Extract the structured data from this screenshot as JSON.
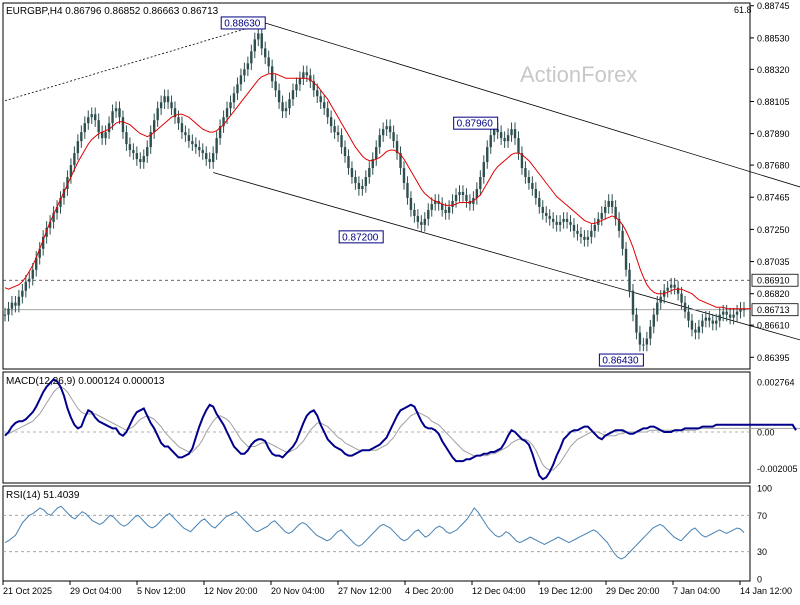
{
  "header": {
    "symbol_line": "EURGBP,H4  0.86796 0.86852 0.86663 0.86713",
    "corner_value": "61.8"
  },
  "watermark": "ActionForex",
  "colors": {
    "candle": "#2f4f4f",
    "ma": "#e00000",
    "channel": "#000000",
    "macd_line": "#00008b",
    "signal_line": "#a0a0a0",
    "rsi_line": "#4682b4",
    "price_box_bg": "#ffffff",
    "last_box_bg": "#ffffff"
  },
  "chart_data": [
    {
      "type": "candlestick",
      "title": "EURGBP,H4  0.86796 0.86852 0.86663 0.86713",
      "y_ticks": [
        "0.88745",
        "0.88530",
        "0.88320",
        "0.88105",
        "0.87890",
        "0.87680",
        "0.87465",
        "0.87250",
        "0.87035",
        "0.86820",
        "0.86610",
        "0.86395"
      ],
      "ylim": [
        0.8633,
        0.8875
      ],
      "x_ticks": [
        "21 Oct 2025",
        "29 Oct 04:00",
        "5 Nov 12:00",
        "12 Nov 20:00",
        "20 Nov 04:00",
        "27 Nov 12:00",
        "4 Dec 20:00",
        "12 Dec 04:00",
        "19 Dec 12:00",
        "29 Dec 20:00",
        "7 Jan 04:00",
        "14 Jan 12:00"
      ],
      "close_series": [
        0.8668,
        0.8672,
        0.8676,
        0.8674,
        0.868,
        0.8684,
        0.869,
        0.8692,
        0.8698,
        0.8706,
        0.8712,
        0.872,
        0.8726,
        0.873,
        0.8736,
        0.874,
        0.8746,
        0.8752,
        0.876,
        0.8768,
        0.8776,
        0.8784,
        0.879,
        0.8796,
        0.88,
        0.8802,
        0.8798,
        0.879,
        0.8786,
        0.879,
        0.8796,
        0.8804,
        0.8806,
        0.88,
        0.879,
        0.8782,
        0.8778,
        0.8776,
        0.8772,
        0.877,
        0.8774,
        0.878,
        0.879,
        0.8798,
        0.8806,
        0.881,
        0.8814,
        0.881,
        0.8806,
        0.88,
        0.8796,
        0.879,
        0.8788,
        0.8784,
        0.8782,
        0.878,
        0.8778,
        0.8776,
        0.8772,
        0.877,
        0.8776,
        0.8786,
        0.8794,
        0.88,
        0.8806,
        0.881,
        0.8816,
        0.8822,
        0.8828,
        0.8832,
        0.8836,
        0.8844,
        0.8852,
        0.8856,
        0.8846,
        0.884,
        0.8834,
        0.8824,
        0.8818,
        0.881,
        0.8804,
        0.8806,
        0.8812,
        0.8818,
        0.8822,
        0.8826,
        0.883,
        0.8828,
        0.8824,
        0.8818,
        0.8814,
        0.881,
        0.8806,
        0.88,
        0.8794,
        0.879,
        0.8788,
        0.878,
        0.8774,
        0.8766,
        0.876,
        0.8756,
        0.8752,
        0.8754,
        0.876,
        0.8766,
        0.8772,
        0.878,
        0.8788,
        0.8792,
        0.8794,
        0.879,
        0.8784,
        0.8776,
        0.8766,
        0.8756,
        0.8746,
        0.8738,
        0.8734,
        0.873,
        0.8728,
        0.8732,
        0.8738,
        0.8742,
        0.8744,
        0.8742,
        0.8738,
        0.8736,
        0.874,
        0.8744,
        0.8748,
        0.875,
        0.8748,
        0.8744,
        0.8742,
        0.8746,
        0.8752,
        0.876,
        0.877,
        0.878,
        0.8788,
        0.8792,
        0.879,
        0.8786,
        0.8784,
        0.8788,
        0.8792,
        0.8786,
        0.8776,
        0.8766,
        0.876,
        0.8756,
        0.8752,
        0.8746,
        0.874,
        0.8736,
        0.8734,
        0.8732,
        0.873,
        0.8728,
        0.873,
        0.8732,
        0.873,
        0.8728,
        0.8724,
        0.8722,
        0.872,
        0.8718,
        0.872,
        0.8724,
        0.8728,
        0.8732,
        0.8736,
        0.874,
        0.8744,
        0.874,
        0.8732,
        0.8724,
        0.8712,
        0.8698,
        0.8684,
        0.8668,
        0.8656,
        0.8648,
        0.8648,
        0.8652,
        0.866,
        0.8668,
        0.8676,
        0.868,
        0.8684,
        0.8686,
        0.8688,
        0.8686,
        0.8682,
        0.8676,
        0.867,
        0.8664,
        0.8658,
        0.8656,
        0.866,
        0.8664,
        0.8666,
        0.8664,
        0.8662,
        0.8664,
        0.8668,
        0.867,
        0.8668,
        0.8666,
        0.8668,
        0.867,
        0.8672,
        0.8671
      ],
      "ma_series": [
        0.8686,
        0.8685,
        0.8686,
        0.8687,
        0.8688,
        0.869,
        0.8693,
        0.8697,
        0.8701,
        0.8706,
        0.8712,
        0.8718,
        0.8724,
        0.873,
        0.8735,
        0.874,
        0.8745,
        0.875,
        0.8755,
        0.876,
        0.8765,
        0.877,
        0.8774,
        0.8778,
        0.8782,
        0.8785,
        0.8787,
        0.8789,
        0.879,
        0.8791,
        0.8792,
        0.8794,
        0.8796,
        0.8797,
        0.8797,
        0.8796,
        0.8795,
        0.8793,
        0.8791,
        0.8789,
        0.8788,
        0.8787,
        0.8788,
        0.879,
        0.8792,
        0.8794,
        0.8796,
        0.8798,
        0.88,
        0.8801,
        0.8802,
        0.8802,
        0.8801,
        0.88,
        0.8798,
        0.8796,
        0.8794,
        0.8792,
        0.8791,
        0.879,
        0.879,
        0.8791,
        0.8793,
        0.8795,
        0.8798,
        0.8801,
        0.8804,
        0.8807,
        0.881,
        0.8813,
        0.8816,
        0.8819,
        0.8822,
        0.8825,
        0.8827,
        0.8828,
        0.8829,
        0.8829,
        0.8829,
        0.8828,
        0.8827,
        0.8826,
        0.8826,
        0.8826,
        0.8826,
        0.8826,
        0.8826,
        0.8826,
        0.8825,
        0.8823,
        0.8821,
        0.8818,
        0.8815,
        0.8812,
        0.8808,
        0.8804,
        0.88,
        0.8796,
        0.8792,
        0.8788,
        0.8784,
        0.878,
        0.8777,
        0.8774,
        0.8772,
        0.8771,
        0.8771,
        0.8772,
        0.8773,
        0.8775,
        0.8777,
        0.8778,
        0.8778,
        0.8777,
        0.8775,
        0.8772,
        0.8768,
        0.8764,
        0.876,
        0.8756,
        0.8752,
        0.8749,
        0.8747,
        0.8745,
        0.8744,
        0.8743,
        0.8742,
        0.8741,
        0.8741,
        0.8741,
        0.8742,
        0.8743,
        0.8743,
        0.8743,
        0.8743,
        0.8744,
        0.8746,
        0.8748,
        0.8752,
        0.8756,
        0.876,
        0.8764,
        0.8767,
        0.8769,
        0.8771,
        0.8773,
        0.8775,
        0.8776,
        0.8776,
        0.8775,
        0.8773,
        0.8771,
        0.8768,
        0.8765,
        0.8762,
        0.8759,
        0.8756,
        0.8753,
        0.875,
        0.8747,
        0.8745,
        0.8743,
        0.8741,
        0.8739,
        0.8737,
        0.8735,
        0.8733,
        0.8731,
        0.873,
        0.8729,
        0.8729,
        0.873,
        0.8731,
        0.8732,
        0.8733,
        0.8734,
        0.8733,
        0.8731,
        0.8728,
        0.8724,
        0.8719,
        0.8713,
        0.8706,
        0.8699,
        0.8693,
        0.8688,
        0.8685,
        0.8683,
        0.8682,
        0.8682,
        0.8682,
        0.8683,
        0.8684,
        0.8685,
        0.8685,
        0.8685,
        0.8684,
        0.8683,
        0.8682,
        0.868,
        0.8678,
        0.8677,
        0.8676,
        0.8675,
        0.8674,
        0.8673,
        0.8673,
        0.8673,
        0.8672,
        0.8672,
        0.8672,
        0.8672,
        0.8672,
        0.8672,
        0.8672,
        0.8672
      ],
      "annotations": [
        {
          "label": "0.88630",
          "value": 0.8863,
          "index": 75
        },
        {
          "label": "0.87960",
          "value": 0.8796,
          "index": 142
        },
        {
          "label": "0.87200",
          "value": 0.872,
          "index": 109
        },
        {
          "label": "0.86430",
          "value": 0.8643,
          "index": 184
        }
      ],
      "horizontal_levels": [
        {
          "label": "0.86910",
          "value": 0.8691,
          "style": "dashed"
        },
        {
          "label": "0.86713",
          "value": 0.86713,
          "style": "solid"
        }
      ],
      "channel_upper": [
        {
          "index": 75,
          "value": 0.8863
        },
        {
          "index": 269,
          "value": 0.8725
        }
      ],
      "channel_lower": [
        {
          "index": 60,
          "value": 0.8763
        },
        {
          "index": 252,
          "value": 0.8636
        }
      ],
      "dotted_trend": [
        {
          "index": 0,
          "value": 0.8811
        },
        {
          "index": 75,
          "value": 0.8863
        }
      ]
    },
    {
      "type": "line",
      "title": "MACD(12,26,9) 0.000124 0.000013",
      "y_ticks": [
        "0.002764",
        "0.00",
        "-0.002005"
      ],
      "ylim": [
        -0.0027,
        0.0032
      ],
      "macd_series": [
        -0.0002,
        0.0,
        0.0003,
        0.0005,
        0.0006,
        0.0006,
        0.0007,
        0.0009,
        0.0011,
        0.0014,
        0.0018,
        0.0022,
        0.0025,
        0.0027,
        0.0029,
        0.0028,
        0.0025,
        0.002,
        0.0013,
        0.0008,
        0.0004,
        0.0002,
        0.0003,
        0.0008,
        0.0012,
        0.0011,
        0.0008,
        0.0006,
        0.0005,
        0.0004,
        0.0003,
        0.0002,
        0.0002,
        -0.0001,
        -0.0002,
        0.0,
        0.0004,
        0.0008,
        0.0011,
        0.0012,
        0.0013,
        0.0009,
        0.0005,
        0.0002,
        -0.0002,
        -0.0006,
        -0.0008,
        -0.0008,
        -0.001,
        -0.0012,
        -0.0014,
        -0.0014,
        -0.0013,
        -0.0012,
        -0.0009,
        -0.0003,
        0.0003,
        0.0008,
        0.0012,
        0.0015,
        0.0014,
        0.001,
        0.0007,
        0.0004,
        0.0,
        -0.0004,
        -0.0008,
        -0.001,
        -0.0012,
        -0.0012,
        -0.001,
        -0.0007,
        -0.0005,
        -0.0004,
        -0.0004,
        -0.0005,
        -0.0009,
        -0.0012,
        -0.0013,
        -0.0013,
        -0.0014,
        -0.0012,
        -0.001,
        -0.0008,
        -0.0005,
        0.0,
        0.0005,
        0.0009,
        0.0011,
        0.0012,
        0.0009,
        0.0004,
        0.0,
        -0.0004,
        -0.0006,
        -0.0008,
        -0.0009,
        -0.001,
        -0.0012,
        -0.0013,
        -0.0013,
        -0.0012,
        -0.0011,
        -0.001,
        -0.001,
        -0.001,
        -0.0009,
        -0.0008,
        -0.0007,
        -0.0005,
        -0.0003,
        0.0001,
        0.0005,
        0.0009,
        0.0012,
        0.0013,
        0.0014,
        0.0015,
        0.0014,
        0.001,
        0.0006,
        0.0003,
        0.0002,
        0.0002,
        0.0001,
        -0.0001,
        -0.0005,
        -0.0008,
        -0.0011,
        -0.0014,
        -0.0016,
        -0.0016,
        -0.0016,
        -0.0015,
        -0.0015,
        -0.0014,
        -0.0013,
        -0.0013,
        -0.0012,
        -0.0012,
        -0.0011,
        -0.0011,
        -0.001,
        -0.0009,
        -0.0006,
        -0.0002,
        0.0001,
        0.0,
        -0.0002,
        -0.0004,
        -0.0005,
        -0.0007,
        -0.0012,
        -0.0018,
        -0.0024,
        -0.0026,
        -0.0025,
        -0.0022,
        -0.0018,
        -0.0013,
        -0.0009,
        -0.0004,
        -0.0002,
        0.0,
        0.0001,
        0.0001,
        0.0002,
        0.0003,
        0.0003,
        0.0001,
        -0.0001,
        -0.0003,
        -0.0004,
        -0.0002,
        -0.0001,
        0.0,
        0.0001,
        0.0001,
        0.0001,
        0.0,
        -0.0001,
        -0.0001,
        0.0,
        0.0001,
        0.0002,
        0.0002,
        0.0003,
        0.0003,
        0.0002,
        0.0001,
        0.0,
        0.0,
        0.0,
        0.0001,
        0.0001,
        0.0001,
        0.0002,
        0.0002,
        0.0002,
        0.0002,
        0.0002,
        0.0003,
        0.0003,
        0.0003,
        0.0003,
        0.0004,
        0.0004,
        0.0004,
        0.0004,
        0.0004,
        0.0004,
        0.0004,
        0.0004,
        0.0004,
        0.0004,
        0.0004,
        0.0004,
        0.0004,
        0.0004,
        0.0004,
        0.0004,
        0.0004,
        0.0004,
        0.0004,
        0.0004,
        0.0004,
        0.0004,
        0.0004,
        0.0001
      ],
      "signal_series": [
        -0.0001,
        -0.0001,
        0.0,
        0.0001,
        0.0002,
        0.0003,
        0.0004,
        0.0005,
        0.0006,
        0.0008,
        0.001,
        0.0013,
        0.0016,
        0.0019,
        0.0022,
        0.0024,
        0.0025,
        0.0024,
        0.0022,
        0.0019,
        0.0016,
        0.0013,
        0.0011,
        0.001,
        0.001,
        0.001,
        0.001,
        0.0009,
        0.0008,
        0.0007,
        0.0006,
        0.0005,
        0.0004,
        0.0003,
        0.0002,
        0.0001,
        0.0002,
        0.0003,
        0.0005,
        0.0007,
        0.0008,
        0.0009,
        0.0008,
        0.0007,
        0.0005,
        0.0003,
        0.0,
        -0.0002,
        -0.0004,
        -0.0006,
        -0.0008,
        -0.0009,
        -0.001,
        -0.0011,
        -0.0011,
        -0.0009,
        -0.0007,
        -0.0004,
        0.0,
        0.0003,
        0.0006,
        0.0008,
        0.0009,
        0.0008,
        0.0007,
        0.0005,
        0.0002,
        -0.0001,
        -0.0004,
        -0.0006,
        -0.0008,
        -0.0008,
        -0.0008,
        -0.0007,
        -0.0006,
        -0.0006,
        -0.0006,
        -0.0007,
        -0.0008,
        -0.0009,
        -0.001,
        -0.0011,
        -0.0011,
        -0.001,
        -0.0009,
        -0.0007,
        -0.0005,
        -0.0002,
        0.0001,
        0.0003,
        0.0005,
        0.0005,
        0.0004,
        0.0003,
        0.0001,
        -0.0001,
        -0.0003,
        -0.0004,
        -0.0006,
        -0.0007,
        -0.0008,
        -0.0009,
        -0.001,
        -0.001,
        -0.001,
        -0.001,
        -0.001,
        -0.001,
        -0.0009,
        -0.0008,
        -0.0007,
        -0.0005,
        -0.0003,
        0.0,
        0.0003,
        0.0005,
        0.0007,
        0.0009,
        0.001,
        0.0011,
        0.001,
        0.0009,
        0.0008,
        0.0006,
        0.0005,
        0.0004,
        0.0002,
        0.0,
        -0.0002,
        -0.0004,
        -0.0006,
        -0.0008,
        -0.001,
        -0.0011,
        -0.0012,
        -0.0013,
        -0.0013,
        -0.0013,
        -0.0013,
        -0.0013,
        -0.0012,
        -0.0012,
        -0.0011,
        -0.001,
        -0.0009,
        -0.0008,
        -0.0006,
        -0.0005,
        -0.0004,
        -0.0004,
        -0.0004,
        -0.0005,
        -0.0007,
        -0.001,
        -0.0014,
        -0.0018,
        -0.002,
        -0.0021,
        -0.0021,
        -0.0019,
        -0.0017,
        -0.0014,
        -0.0011,
        -0.0008,
        -0.0006,
        -0.0004,
        -0.0003,
        -0.0002,
        -0.0001,
        0.0,
        0.0,
        0.0,
        -0.0001,
        -0.0002,
        -0.0002,
        -0.0002,
        -0.0002,
        -0.0001,
        -0.0001,
        0.0,
        0.0,
        0.0,
        0.0,
        0.0,
        0.0,
        0.0,
        0.0001,
        0.0001,
        0.0001,
        0.0001,
        0.0001,
        0.0001,
        0.0001,
        0.0001,
        0.0001,
        0.0001,
        0.0001,
        0.0001,
        0.0001,
        0.0001,
        0.0002,
        0.0002,
        0.0002,
        0.0002,
        0.0002,
        0.0002,
        0.0002,
        0.0002,
        0.0002,
        0.0002,
        0.0002,
        0.0002,
        0.0002,
        0.0002,
        0.0002,
        0.0002,
        0.0002,
        0.0002,
        0.0002,
        0.0002,
        0.0002,
        0.0002,
        0.0002,
        0.0002,
        0.0002,
        0.0002,
        0.0002,
        0.0002,
        0.0002,
        0.0002,
        0.0
      ]
    },
    {
      "type": "line",
      "title": "RSI(14) 51.4039",
      "y_ticks": [
        "100",
        "70",
        "30",
        "0"
      ],
      "ylim": [
        0,
        100
      ],
      "levels": [
        70,
        30
      ],
      "rsi_series": [
        40,
        42,
        45,
        48,
        55,
        62,
        66,
        70,
        72,
        75,
        78,
        76,
        72,
        70,
        74,
        78,
        80,
        76,
        72,
        68,
        66,
        70,
        74,
        72,
        68,
        64,
        62,
        60,
        62,
        66,
        70,
        68,
        64,
        60,
        58,
        60,
        64,
        68,
        70,
        66,
        62,
        58,
        56,
        58,
        62,
        66,
        70,
        72,
        68,
        64,
        60,
        56,
        54,
        52,
        56,
        60,
        64,
        66,
        62,
        58,
        56,
        60,
        64,
        68,
        70,
        72,
        74,
        70,
        66,
        62,
        58,
        54,
        52,
        54,
        56,
        58,
        62,
        64,
        60,
        56,
        52,
        50,
        52,
        56,
        60,
        62,
        60,
        56,
        52,
        48,
        46,
        44,
        42,
        44,
        48,
        52,
        54,
        50,
        46,
        42,
        38,
        36,
        38,
        42,
        46,
        50,
        54,
        58,
        60,
        58,
        56,
        52,
        48,
        44,
        42,
        44,
        48,
        52,
        54,
        50,
        46,
        48,
        52,
        56,
        58,
        56,
        52,
        50,
        52,
        54,
        58,
        62,
        66,
        72,
        78,
        74,
        68,
        62,
        56,
        52,
        48,
        46,
        48,
        52,
        50,
        46,
        42,
        40,
        42,
        44,
        46,
        44,
        42,
        40,
        38,
        40,
        42,
        44,
        46,
        44,
        42,
        40,
        42,
        44,
        46,
        48,
        50,
        52,
        54,
        52,
        48,
        44,
        40,
        34,
        28,
        24,
        22,
        24,
        28,
        32,
        36,
        40,
        44,
        48,
        52,
        56,
        58,
        60,
        58,
        54,
        50,
        46,
        44,
        42,
        46,
        50,
        54,
        56,
        52,
        48,
        46,
        48,
        50,
        52,
        54,
        52,
        50,
        52,
        54,
        56,
        55,
        51
      ],
      "rsi_value": 51.4039
    }
  ]
}
